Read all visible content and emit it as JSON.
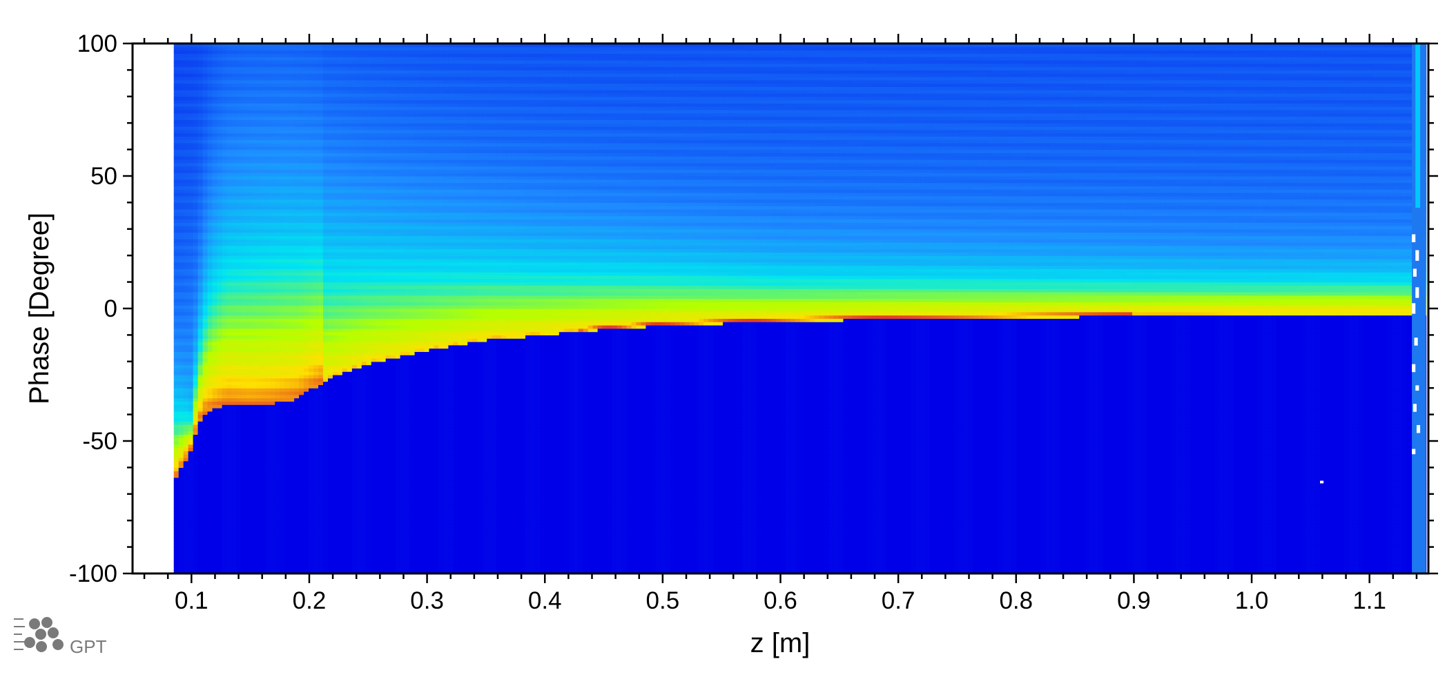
{
  "chart_data": {
    "type": "heatmap",
    "title": "",
    "xlabel": "z [m]",
    "ylabel": "Phase [Degree]",
    "xlim": [
      0.05,
      1.15
    ],
    "ylim": [
      -100,
      100
    ],
    "x_ticks": [
      0.1,
      0.2,
      0.3,
      0.4,
      0.5,
      0.6,
      0.7,
      0.8,
      0.9,
      1.0,
      1.1
    ],
    "x_tick_labels": [
      "0.1",
      "0.2",
      "0.3",
      "0.4",
      "0.5",
      "0.6",
      "0.7",
      "0.8",
      "0.9",
      "1.0",
      "1.1"
    ],
    "y_ticks": [
      100,
      50,
      0,
      -50,
      -100
    ],
    "y_tick_labels": [
      "100",
      "50",
      "0",
      "-50",
      "-100"
    ],
    "grid": false,
    "legend": "none",
    "data_x_range": [
      0.085,
      1.148
    ],
    "colormap": [
      "#0000e8",
      "#0a3ff0",
      "#1e8cff",
      "#00e6f0",
      "#b4ff00",
      "#ffe000",
      "#e02828"
    ],
    "boundary_phase": {
      "z": [
        0.085,
        0.1,
        0.105,
        0.11,
        0.12,
        0.13,
        0.15,
        0.17,
        0.18,
        0.19,
        0.2,
        0.22,
        0.25,
        0.3,
        0.35,
        0.4,
        0.45,
        0.5,
        0.6,
        0.7,
        0.8,
        0.9,
        1.0,
        1.1,
        1.13
      ],
      "phase": [
        -65,
        -52,
        -44,
        -39,
        -37,
        -35,
        -36,
        -35,
        -34,
        -33,
        -30,
        -25,
        -20,
        -15,
        -11,
        -9,
        -7,
        -5.5,
        -4,
        -3,
        -2.5,
        -2,
        -1.5,
        -1,
        -1
      ],
      "peak_color": "#e02828"
    },
    "upper_halo_phase": {
      "z": [
        0.1,
        0.105,
        0.11,
        0.115,
        0.12,
        0.13,
        0.15,
        0.18,
        0.2,
        0.25,
        0.3,
        0.4,
        0.5,
        0.6,
        0.8,
        1.0,
        1.13
      ],
      "phase": [
        -50,
        -30,
        -12,
        0,
        8,
        18,
        22,
        24,
        22,
        18,
        15,
        12,
        10,
        8,
        7,
        6,
        6
      ]
    },
    "background_color": "#0000e8"
  },
  "logo": {
    "text": "GPT",
    "color": "#7a7a7a"
  }
}
